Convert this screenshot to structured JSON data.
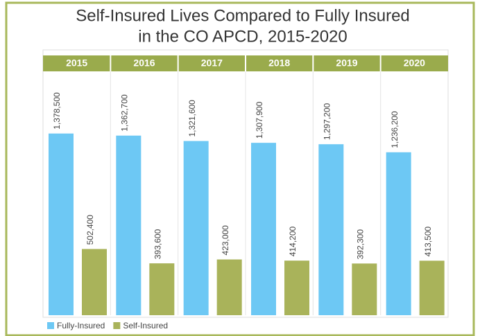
{
  "chart_data": {
    "type": "bar",
    "title": [
      "Self-Insured Lives Compared to Fully Insured",
      "in the CO APCD, 2015-2020"
    ],
    "categories": [
      "2015",
      "2016",
      "2017",
      "2018",
      "2019",
      "2020"
    ],
    "series": [
      {
        "name": "Fully-Insured",
        "color": "#6dc8f4",
        "values": [
          1378500,
          1362700,
          1321600,
          1307900,
          1297200,
          1236200
        ],
        "value_labels": [
          "1,378,500",
          "1,362,700",
          "1,321,600",
          "1,307,900",
          "1,297,200",
          "1,236,200"
        ]
      },
      {
        "name": "Self-Insured",
        "color": "#a9b35a",
        "values": [
          502400,
          393600,
          423000,
          414200,
          392300,
          413500
        ],
        "value_labels": [
          "502,400",
          "393,600",
          "423,000",
          "414,200",
          "392,300",
          "413,500"
        ]
      }
    ],
    "ylim": [
      0,
      1850000
    ],
    "legend": "bottom-left"
  }
}
